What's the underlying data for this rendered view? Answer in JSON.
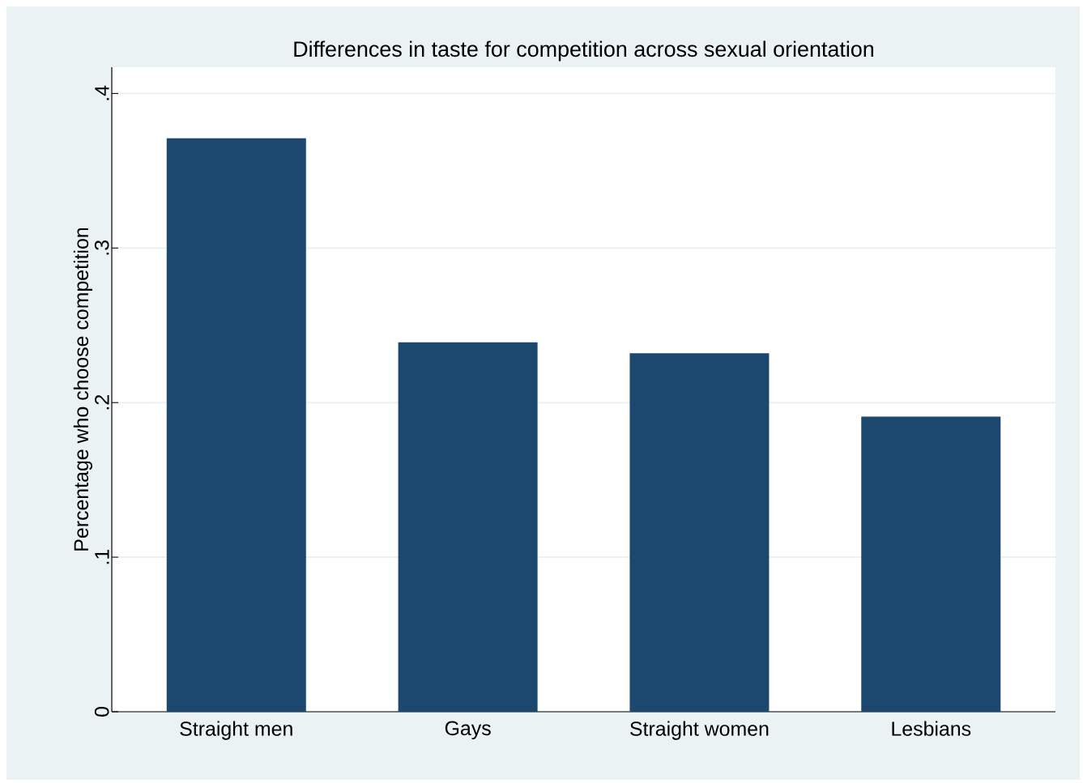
{
  "chart_data": {
    "type": "bar",
    "title": "Differences in taste for competition across sexual orientation",
    "ylabel": "Percentage who choose competition",
    "categories": [
      "Straight men",
      "Gays",
      "Straight women",
      "Lesbians"
    ],
    "values": [
      0.371,
      0.239,
      0.232,
      0.191
    ],
    "color": "#1c4870",
    "ylim": [
      0,
      0.417
    ],
    "yticks": [
      0,
      {
        "value": 0.1,
        "label": ".1"
      },
      {
        "value": 0.2,
        "label": ".2"
      },
      {
        "value": 0.3,
        "label": ".3"
      },
      {
        "value": 0.4,
        "label": ".4"
      }
    ],
    "grid": "y"
  }
}
